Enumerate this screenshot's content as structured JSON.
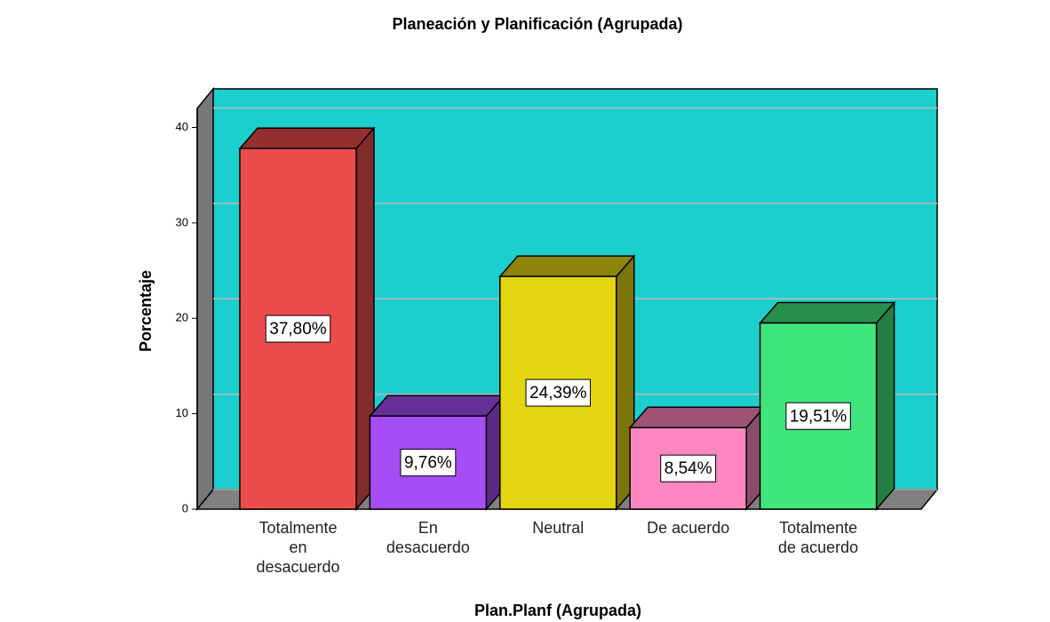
{
  "chart_data": {
    "type": "bar3d",
    "title": "Planeación y Planificación (Agrupada)",
    "x_label": "Plan.Planf (Agrupada)",
    "y_label": "Porcentaje",
    "categories": [
      "Totalmente en desacuerdo",
      "En desacuerdo",
      "Neutral",
      "De acuerdo",
      "Totalmente de acuerdo"
    ],
    "values": [
      37.8,
      9.76,
      24.39,
      8.54,
      19.51
    ],
    "value_labels": [
      "37,80%",
      "9,76%",
      "24,39%",
      "8,54%",
      "19,51%"
    ],
    "colors": [
      "#ee4c4c",
      "#a64df5",
      "#e3d510",
      "#fb86c0",
      "#40e57c"
    ],
    "ylim": [
      0,
      42
    ],
    "yticks": [
      0,
      10,
      20,
      30,
      40
    ],
    "grid": true,
    "wall_color": "#1ccfcf"
  }
}
